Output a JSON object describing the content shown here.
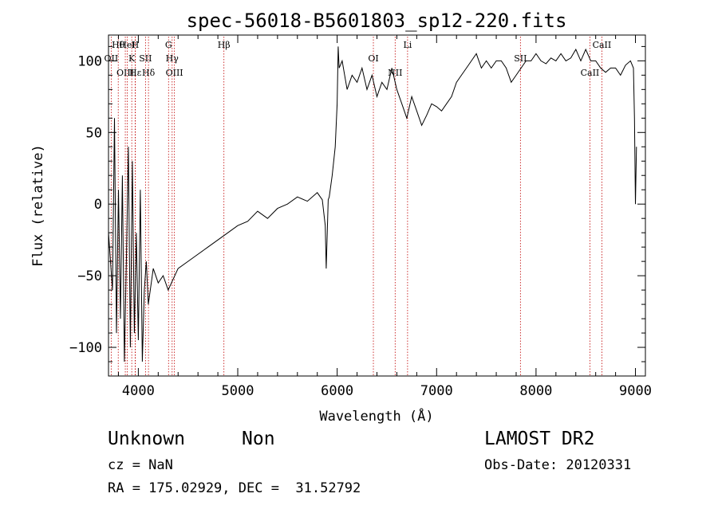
{
  "chart_data": {
    "type": "line",
    "title": "spec-56018-B5601803_sp12-220.fits",
    "xlabel": "Wavelength (Å)",
    "ylabel": "Flux (relative)",
    "xlim": [
      3700,
      9100
    ],
    "ylim": [
      -120,
      118
    ],
    "x_ticks": [
      4000,
      5000,
      6000,
      7000,
      8000,
      9000
    ],
    "y_ticks": [
      -100,
      -50,
      0,
      50,
      100
    ],
    "grid": false,
    "series": [
      {
        "x": [
          3700,
          3740,
          3760,
          3780,
          3800,
          3820,
          3840,
          3860,
          3880,
          3900,
          3920,
          3940,
          3960,
          3980,
          4000,
          4020,
          4040,
          4060,
          4080,
          4100,
          4150,
          4200,
          4250,
          4300,
          4400,
          4500,
          4600,
          4700,
          4800,
          4900,
          5000,
          5100,
          5200,
          5300,
          5400,
          5500,
          5600,
          5700,
          5800,
          5850,
          5880,
          5890,
          5900,
          5910,
          5920,
          5950,
          5980,
          6000,
          6010,
          6020,
          6050,
          6100,
          6150,
          6200,
          6250,
          6300,
          6350,
          6400,
          6450,
          6500,
          6550,
          6600,
          6650,
          6700,
          6750,
          6800,
          6850,
          6900,
          6950,
          7000,
          7050,
          7100,
          7150,
          7200,
          7250,
          7300,
          7350,
          7400,
          7450,
          7500,
          7550,
          7600,
          7650,
          7700,
          7750,
          7800,
          7850,
          7900,
          7950,
          8000,
          8050,
          8100,
          8150,
          8200,
          8250,
          8300,
          8350,
          8400,
          8450,
          8500,
          8550,
          8600,
          8650,
          8700,
          8750,
          8800,
          8850,
          8900,
          8950,
          8980,
          8990,
          9000,
          9010
        ],
        "y": [
          -20,
          -60,
          60,
          -90,
          10,
          -80,
          20,
          -110,
          -40,
          40,
          -100,
          30,
          -90,
          -20,
          -95,
          10,
          -110,
          -60,
          -40,
          -70,
          -45,
          -55,
          -50,
          -60,
          -45,
          -40,
          -35,
          -30,
          -25,
          -20,
          -15,
          -12,
          -5,
          -10,
          -3,
          0,
          5,
          2,
          8,
          3,
          -15,
          -45,
          -20,
          3,
          5,
          20,
          40,
          70,
          110,
          95,
          100,
          80,
          90,
          85,
          95,
          80,
          90,
          75,
          85,
          80,
          95,
          80,
          70,
          60,
          75,
          65,
          55,
          62,
          70,
          68,
          65,
          70,
          75,
          85,
          90,
          95,
          100,
          105,
          95,
          100,
          95,
          100,
          100,
          95,
          85,
          90,
          95,
          100,
          100,
          105,
          100,
          98,
          102,
          100,
          105,
          100,
          102,
          108,
          100,
          108,
          100,
          100,
          95,
          92,
          95,
          95,
          90,
          97,
          100,
          95,
          60,
          0,
          40
        ]
      }
    ],
    "lines": [
      {
        "label": "Hθ",
        "x": 3798
      },
      {
        "label": "OII",
        "x": 3727
      },
      {
        "label": "OIII",
        "x": 3869
      },
      {
        "label": "HeI",
        "x": 3889
      },
      {
        "label": "K",
        "x": 3934
      },
      {
        "label": "Hε",
        "x": 3970
      },
      {
        "label": "H",
        "x": 3968
      },
      {
        "label": "SII",
        "x": 4072
      },
      {
        "label": "Hδ",
        "x": 4102
      },
      {
        "label": "G",
        "x": 4304
      },
      {
        "label": "Hγ",
        "x": 4340
      },
      {
        "label": "OIII",
        "x": 4363
      },
      {
        "label": "Hβ",
        "x": 4861
      },
      {
        "label": "OI",
        "x": 6364
      },
      {
        "label": "NII",
        "x": 6583
      },
      {
        "label": "Li",
        "x": 6708
      },
      {
        "label": "SII",
        "x": 7843
      },
      {
        "label": "CaII",
        "x": 8542
      },
      {
        "label": "CaII",
        "x": 8662
      }
    ]
  },
  "footer": {
    "class_text": "Unknown",
    "subclass_text": "Non",
    "survey": "LAMOST DR2",
    "cz": "cz = NaN",
    "obs_date": "Obs-Date: 20120331",
    "coords": "RA = 175.02929, DEC =  31.52792"
  }
}
